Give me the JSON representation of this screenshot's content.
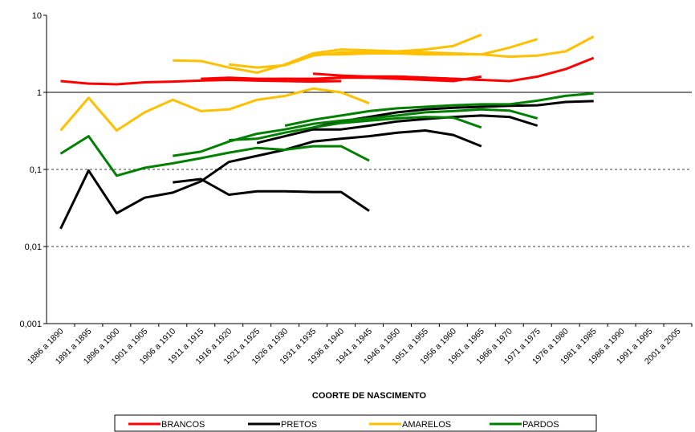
{
  "chart_data": {
    "type": "line",
    "log_scale": true,
    "xlabel": "COORTE DE NASCIMENTO",
    "categories": [
      "1886 a 1890",
      "1891 a 1895",
      "1896 a 1900",
      "1901 a 1905",
      "1906 a 1910",
      "1911 a 1915",
      "1916 a 1920",
      "1921 a 1925",
      "1926 a 1930",
      "1931 a 1935",
      "1936 a 1940",
      "1941 a 1945",
      "1946 a 1950",
      "1951 a 1955",
      "1956 a 1960",
      "1961 a 1965",
      "1966 a 1970",
      "1971 a 1975",
      "1976 a 1980",
      "1981 a 1985",
      "1986 a 1990",
      "1991 a 1995",
      "2001 a 2005"
    ],
    "ylim": [
      0.001,
      10
    ],
    "yticks": [
      {
        "value": 0.001,
        "label": "0,001"
      },
      {
        "value": 0.01,
        "label": "0,01"
      },
      {
        "value": 0.1,
        "label": "0,1"
      },
      1,
      10
    ],
    "grid": true,
    "reference_line": 1,
    "legend": "bottom",
    "series": [
      {
        "name": "BRANCOS",
        "color": "#ff0000",
        "lines": [
          {
            "values": [
              1.4,
              1.3,
              1.27,
              1.35,
              1.38,
              1.42,
              1.45,
              1.42,
              1.4,
              1.38,
              1.4,
              null,
              null,
              null,
              null,
              null,
              null,
              null,
              null,
              null,
              null,
              null,
              null
            ]
          },
          {
            "values": [
              null,
              null,
              null,
              null,
              null,
              1.5,
              1.55,
              1.5,
              1.5,
              1.5,
              1.55,
              1.6,
              1.6,
              1.55,
              1.5,
              1.45,
              null,
              null,
              null,
              null,
              null,
              null,
              null
            ]
          },
          {
            "values": [
              null,
              null,
              null,
              null,
              null,
              null,
              null,
              null,
              null,
              1.75,
              1.65,
              1.6,
              1.6,
              1.55,
              1.5,
              1.45,
              1.4,
              1.6,
              2.0,
              2.8,
              null,
              null,
              null
            ]
          },
          {
            "values": [
              null,
              null,
              null,
              null,
              null,
              null,
              null,
              1.45,
              1.5,
              1.45,
              1.55,
              1.55,
              1.5,
              1.45,
              1.4,
              1.6,
              null,
              null,
              null,
              null,
              null,
              null,
              null
            ]
          }
        ]
      },
      {
        "name": "PRETOS",
        "color": "#000000",
        "lines": [
          {
            "values": [
              0.017,
              0.097,
              0.027,
              0.043,
              0.05,
              0.07,
              0.125,
              0.15,
              0.18,
              0.23,
              0.25,
              0.27,
              0.3,
              0.32,
              0.28,
              0.2,
              null,
              null,
              null,
              null,
              null,
              null,
              null
            ]
          },
          {
            "values": [
              null,
              null,
              null,
              null,
              0.068,
              0.075,
              0.047,
              0.052,
              0.052,
              0.051,
              0.051,
              0.029,
              null,
              null,
              null,
              null,
              null,
              null,
              null,
              null,
              null,
              null,
              null
            ]
          },
          {
            "values": [
              null,
              null,
              null,
              null,
              null,
              null,
              null,
              0.22,
              0.27,
              0.33,
              0.33,
              0.37,
              0.42,
              0.45,
              0.48,
              0.5,
              0.48,
              0.37,
              null,
              null,
              null,
              null,
              null
            ]
          },
          {
            "values": [
              null,
              null,
              null,
              null,
              null,
              null,
              null,
              null,
              null,
              0.35,
              0.42,
              0.48,
              0.55,
              0.6,
              0.63,
              0.65,
              0.67,
              0.68,
              0.75,
              0.77,
              null,
              null,
              null
            ]
          }
        ]
      },
      {
        "name": "AMARELOS",
        "color": "#ffc000",
        "lines": [
          {
            "values": [
              0.32,
              0.85,
              0.32,
              0.55,
              0.8,
              0.57,
              0.6,
              0.8,
              0.9,
              1.12,
              1.0,
              0.72,
              null,
              null,
              null,
              null,
              null,
              null,
              null,
              null,
              null,
              null,
              null
            ]
          },
          {
            "values": [
              null,
              null,
              null,
              null,
              2.6,
              2.55,
              2.1,
              1.8,
              2.3,
              3.2,
              3.6,
              3.5,
              3.4,
              3.6,
              4.0,
              5.6,
              null,
              null,
              null,
              null,
              null,
              null,
              null
            ]
          },
          {
            "values": [
              null,
              null,
              null,
              null,
              null,
              null,
              2.3,
              2.1,
              2.25,
              3.0,
              3.3,
              3.3,
              3.4,
              3.3,
              3.2,
              3.1,
              3.8,
              4.9,
              null,
              null,
              null,
              null,
              null
            ]
          },
          {
            "values": [
              null,
              null,
              null,
              null,
              null,
              null,
              null,
              null,
              null,
              3.1,
              3.1,
              3.2,
              3.2,
              3.1,
              3.1,
              3.1,
              2.9,
              3.0,
              3.4,
              5.3,
              null,
              null,
              null
            ]
          }
        ]
      },
      {
        "name": "PARDOS",
        "color": "#008000",
        "lines": [
          {
            "values": [
              0.16,
              0.27,
              0.083,
              0.105,
              0.12,
              0.14,
              0.165,
              0.19,
              0.18,
              0.2,
              0.2,
              0.13,
              null,
              null,
              null,
              null,
              null,
              null,
              null,
              null,
              null,
              null,
              null
            ]
          },
          {
            "values": [
              null,
              null,
              null,
              null,
              0.15,
              0.17,
              0.23,
              0.29,
              0.33,
              0.39,
              0.43,
              0.46,
              0.5,
              0.55,
              0.57,
              0.6,
              0.58,
              0.46,
              null,
              null,
              null,
              null,
              null
            ]
          },
          {
            "values": [
              null,
              null,
              null,
              null,
              null,
              null,
              0.24,
              0.25,
              0.3,
              0.35,
              0.4,
              0.43,
              0.46,
              0.48,
              0.47,
              0.35,
              null,
              null,
              null,
              null,
              null,
              null,
              null
            ]
          },
          {
            "values": [
              null,
              null,
              null,
              null,
              null,
              null,
              null,
              null,
              0.37,
              0.44,
              0.5,
              0.57,
              0.62,
              0.65,
              0.68,
              0.7,
              0.7,
              0.78,
              0.9,
              0.97,
              null,
              null,
              null
            ]
          }
        ]
      }
    ]
  }
}
